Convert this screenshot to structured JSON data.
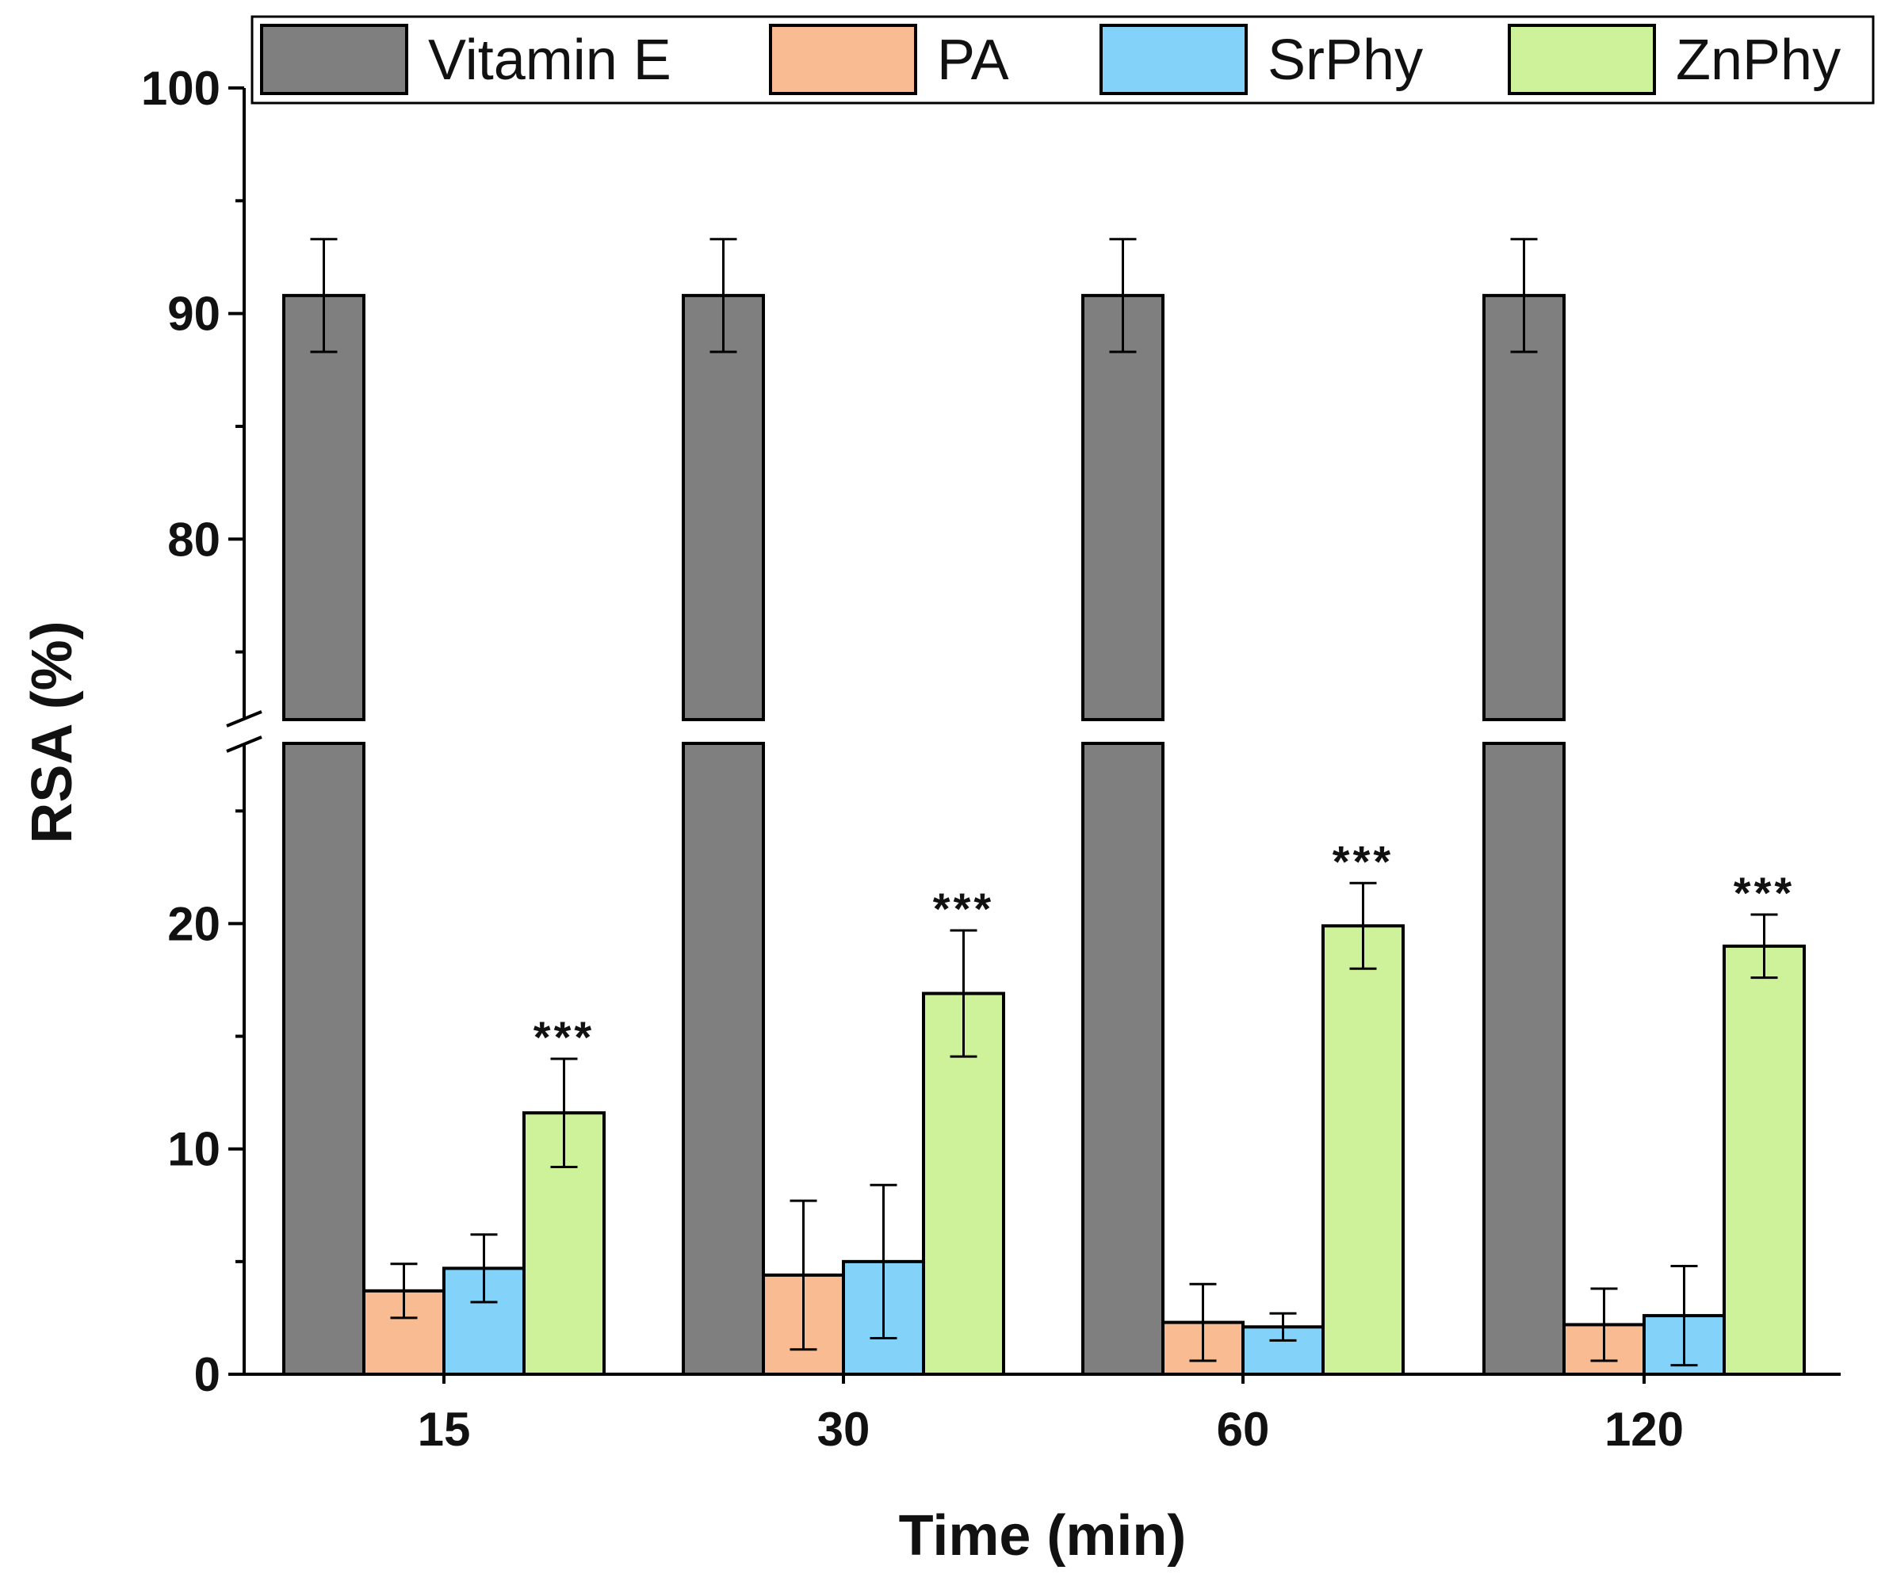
{
  "chart_data": {
    "type": "bar",
    "title": "",
    "xlabel": "Time (min)",
    "ylabel": "RSA (%)",
    "categories": [
      "15",
      "30",
      "60",
      "120"
    ],
    "y_axis_break": {
      "lower": [
        0,
        28
      ],
      "upper": [
        72,
        100
      ]
    },
    "lower_ticks": [
      "0",
      "10",
      "20"
    ],
    "upper_ticks": [
      "80",
      "90",
      "100"
    ],
    "series": [
      {
        "name": "Vitamin E",
        "color": "#7f7f7f",
        "values": [
          90.8,
          90.8,
          90.8,
          90.8
        ],
        "errors": [
          2.5,
          2.5,
          2.5,
          2.5
        ]
      },
      {
        "name": "PA",
        "color": "#f9bb91",
        "values": [
          3.7,
          4.4,
          2.3,
          2.2
        ],
        "errors": [
          1.2,
          3.3,
          1.7,
          1.6
        ]
      },
      {
        "name": "SrPhy",
        "color": "#82d2fa",
        "values": [
          4.7,
          5.0,
          2.1,
          2.6
        ],
        "errors": [
          1.5,
          3.4,
          0.6,
          2.2
        ]
      },
      {
        "name": "ZnPhy",
        "color": "#cef29a",
        "values": [
          11.6,
          16.9,
          19.9,
          19.0
        ],
        "errors": [
          2.4,
          2.8,
          1.9,
          1.4
        ]
      }
    ],
    "annotations": [
      {
        "series": "ZnPhy",
        "category": "15",
        "text": "***"
      },
      {
        "series": "ZnPhy",
        "category": "30",
        "text": "***"
      },
      {
        "series": "ZnPhy",
        "category": "60",
        "text": "***"
      },
      {
        "series": "ZnPhy",
        "category": "120",
        "text": "***"
      }
    ],
    "legend": "top"
  }
}
